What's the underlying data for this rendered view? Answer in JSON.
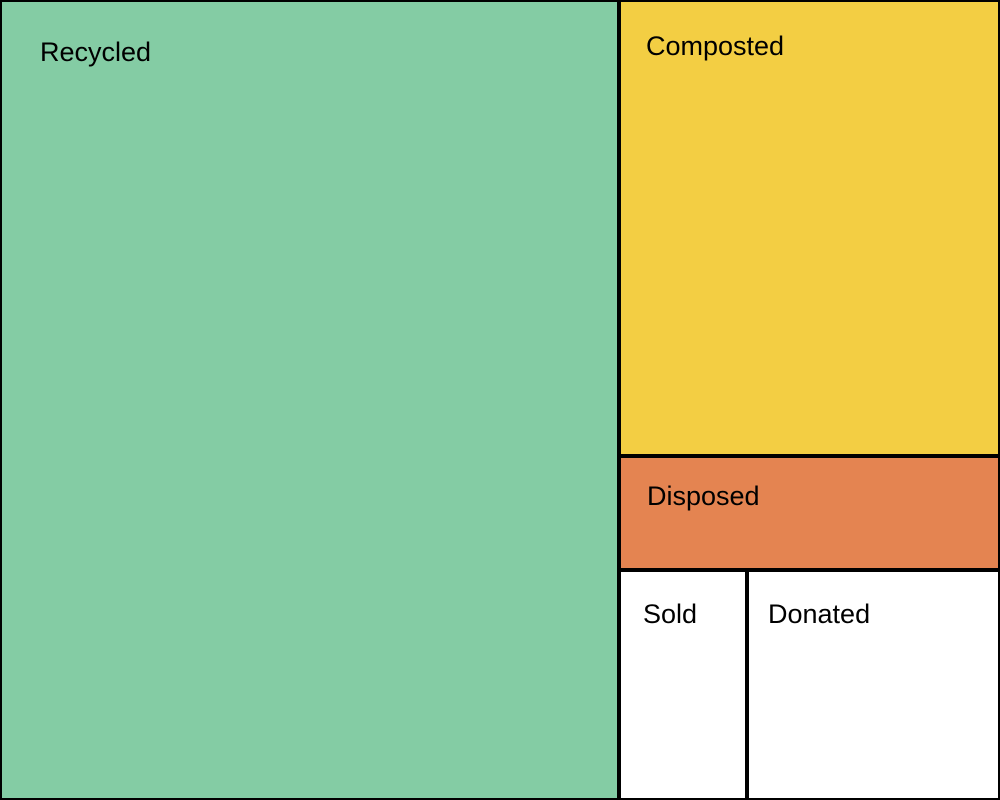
{
  "chart_data": {
    "type": "treemap",
    "items": [
      {
        "label": "Recycled",
        "value": 57.1,
        "color": "#84cca4"
      },
      {
        "label": "Composted",
        "value": 20.0,
        "color": "#f3ce43"
      },
      {
        "label": "Disposed",
        "value": 5.0,
        "color": "#e48451"
      },
      {
        "label": "Sold",
        "value": 3.4,
        "color": "#ffffff"
      },
      {
        "label": "Donated",
        "value": 6.7,
        "color": "#ffffff"
      }
    ]
  }
}
